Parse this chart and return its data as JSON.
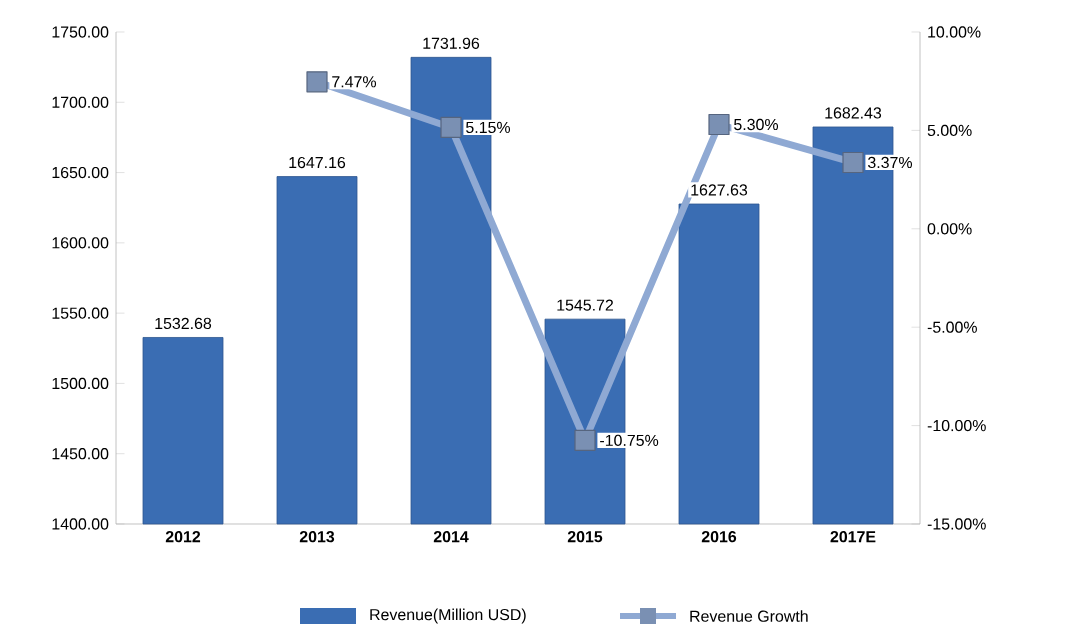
{
  "chart_data": {
    "type": "bar",
    "categories": [
      "2012",
      "2013",
      "2014",
      "2015",
      "2016",
      "2017E"
    ],
    "series": [
      {
        "name": "Revenue(Million USD)",
        "color": "#3a6db3",
        "values": [
          1532.68,
          1647.16,
          1731.96,
          1545.72,
          1627.63,
          1682.43
        ],
        "value_labels": [
          "1532.68",
          "1647.16",
          "1731.96",
          "1545.72",
          "1627.63",
          "1682.43"
        ]
      },
      {
        "name": "Revenue Growth",
        "type": "line",
        "axis": "y2",
        "color": "#8fa9d3",
        "marker": "square",
        "values": [
          null,
          7.47,
          5.15,
          -10.75,
          5.3,
          3.37
        ],
        "value_labels": [
          null,
          "7.47%",
          "5.15%",
          "-10.75%",
          "5.30%",
          "3.37%"
        ]
      }
    ],
    "ylim": [
      1400,
      1750
    ],
    "yticks": [
      {
        "value": 1400,
        "label": "1400.00"
      },
      {
        "value": 1450,
        "label": "1450.00"
      },
      {
        "value": 1500,
        "label": "1500.00"
      },
      {
        "value": 1550,
        "label": "1550.00"
      },
      {
        "value": 1600,
        "label": "1600.00"
      },
      {
        "value": 1650,
        "label": "1650.00"
      },
      {
        "value": 1700,
        "label": "1700.00"
      },
      {
        "value": 1750,
        "label": "1750.00"
      }
    ],
    "y2lim": [
      -15,
      10
    ],
    "y2ticks": [
      {
        "value": -15,
        "label": "-15.00%"
      },
      {
        "value": -10,
        "label": "-10.00%"
      },
      {
        "value": -5,
        "label": "-5.00%"
      },
      {
        "value": 0,
        "label": "0.00%"
      },
      {
        "value": 5,
        "label": "5.00%"
      },
      {
        "value": 10,
        "label": "10.00%"
      }
    ],
    "legend": "bottom"
  }
}
